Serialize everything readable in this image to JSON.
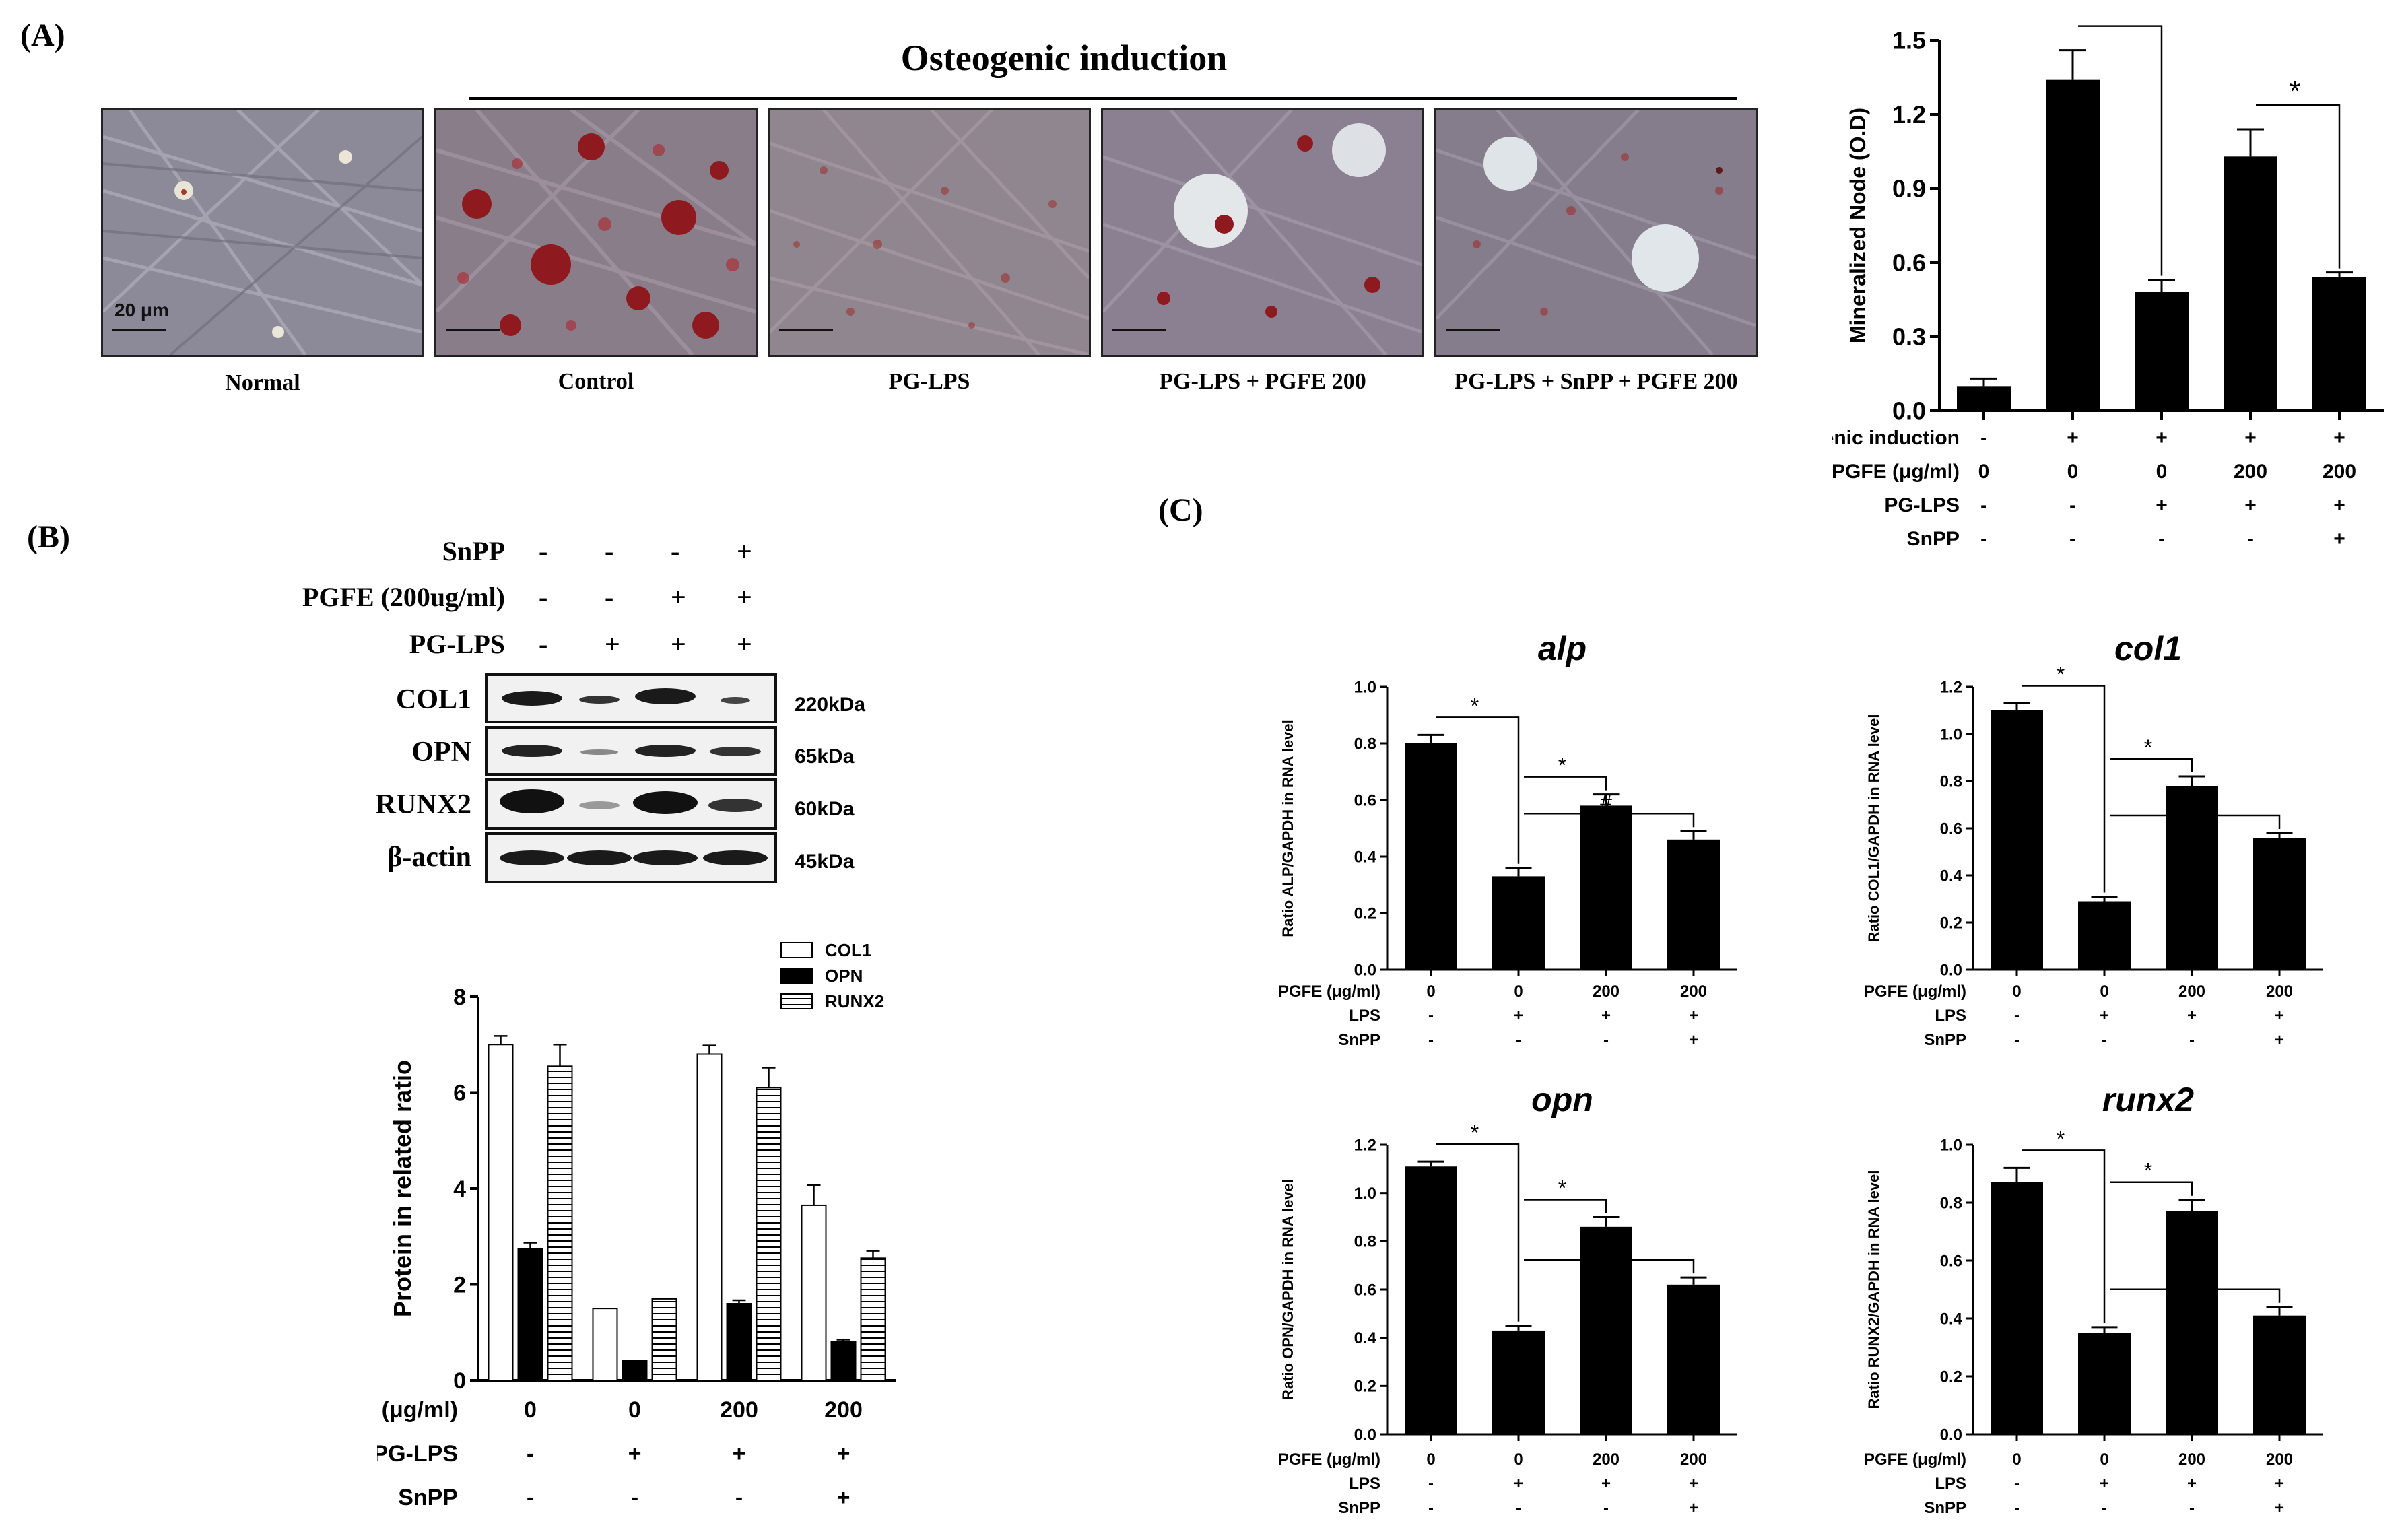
{
  "panelA": {
    "label": "(A)",
    "induction_label": "Osteogenic induction",
    "scale_bar_text": "20 μm",
    "images": [
      {
        "caption": "Normal"
      },
      {
        "caption": "Control"
      },
      {
        "caption": "PG-LPS"
      },
      {
        "caption": "PG-LPS + PGFE 200"
      },
      {
        "caption": "PG-LPS + SnPP + PGFE 200"
      }
    ]
  },
  "panelB": {
    "label": "(B)",
    "blot_conditions": [
      {
        "label": "SnPP",
        "values": [
          "-",
          "-",
          "-",
          "+"
        ]
      },
      {
        "label": "PGFE (200ug/ml)",
        "values": [
          "-",
          "-",
          "+",
          "+"
        ]
      },
      {
        "label": "PG-LPS",
        "values": [
          "-",
          "+",
          "+",
          "+"
        ]
      }
    ],
    "blots": [
      {
        "protein": "COL1",
        "kda": "220kDa"
      },
      {
        "protein": "OPN",
        "kda": "65kDa"
      },
      {
        "protein": "RUNX2",
        "kda": "60kDa"
      },
      {
        "protein": "β-actin",
        "kda": "45kDa"
      }
    ]
  },
  "panelC": {
    "label": "(C)"
  },
  "chart_data": [
    {
      "id": "mineralized",
      "type": "bar",
      "title": "",
      "ylabel": "Mineralized Node (O.D)",
      "ylim": [
        0,
        1.5
      ],
      "yticks": [
        "0.0",
        "0.3",
        "0.6",
        "0.9",
        "1.2",
        "1.5"
      ],
      "values": [
        0.1,
        1.34,
        0.48,
        1.03,
        0.54
      ],
      "errors": [
        0.03,
        0.12,
        0.05,
        0.11,
        0.02
      ],
      "significance": [
        {
          "from": 1,
          "to": 2,
          "label": "*"
        },
        {
          "from": 3,
          "to": 4,
          "label": "*"
        }
      ],
      "condition_rows": [
        {
          "label": "Osteogenic induction",
          "values": [
            "-",
            "+",
            "+",
            "+",
            "+"
          ]
        },
        {
          "label": "PGFE (μg/ml)",
          "values": [
            "0",
            "0",
            "0",
            "200",
            "200"
          ]
        },
        {
          "label": "PG-LPS",
          "values": [
            "-",
            "-",
            "+",
            "+",
            "+"
          ]
        },
        {
          "label": "SnPP",
          "values": [
            "-",
            "-",
            "-",
            "-",
            "+"
          ]
        }
      ]
    },
    {
      "id": "protein-ratio",
      "type": "bar",
      "title": "",
      "ylabel": "Protein in related ratio",
      "ylim": [
        0,
        8
      ],
      "yticks": [
        "0",
        "2",
        "4",
        "6",
        "8"
      ],
      "legend_position": "top-right",
      "series": [
        {
          "name": "COL1",
          "values": [
            7.0,
            1.5,
            6.8,
            3.65
          ],
          "errors": [
            0.18,
            0,
            0.18,
            0.42
          ],
          "pattern": "white"
        },
        {
          "name": "OPN",
          "values": [
            2.75,
            0.42,
            1.6,
            0.8
          ],
          "errors": [
            0.12,
            0,
            0.07,
            0.05
          ],
          "pattern": "black"
        },
        {
          "name": "RUNX2",
          "values": [
            6.55,
            1.7,
            6.1,
            2.55
          ],
          "errors": [
            0.45,
            0,
            0.42,
            0.15
          ],
          "pattern": "stripes"
        }
      ],
      "condition_rows": [
        {
          "label": "PGFE (μg/ml)",
          "values": [
            "0",
            "0",
            "200",
            "200"
          ]
        },
        {
          "label": "PG-LPS",
          "values": [
            "-",
            "+",
            "+",
            "+"
          ]
        },
        {
          "label": "SnPP",
          "values": [
            "-",
            "-",
            "-",
            "+"
          ]
        }
      ]
    },
    {
      "id": "alp",
      "type": "bar",
      "title": "alp",
      "ylabel": "Ratio ALP/GAPDH in RNA level",
      "ylim": [
        0,
        1.0
      ],
      "yticks": [
        "0.0",
        "0.2",
        "0.4",
        "0.6",
        "0.8",
        "1.0"
      ],
      "values": [
        0.8,
        0.33,
        0.58,
        0.46
      ],
      "errors": [
        0.03,
        0.03,
        0.04,
        0.03
      ],
      "significance": [
        {
          "from": 0,
          "to": 1,
          "label": "*"
        },
        {
          "from": 1,
          "to": 2,
          "label": "*"
        },
        {
          "from": 1,
          "to": 3,
          "label": "#"
        }
      ],
      "condition_rows": [
        {
          "label": "PGFE (μg/ml)",
          "values": [
            "0",
            "0",
            "200",
            "200"
          ]
        },
        {
          "label": "LPS",
          "values": [
            "-",
            "+",
            "+",
            "+"
          ]
        },
        {
          "label": "SnPP",
          "values": [
            "-",
            "-",
            "-",
            "+"
          ]
        }
      ]
    },
    {
      "id": "col1",
      "type": "bar",
      "title": "col1",
      "ylabel": "Ratio COL1/GAPDH in RNA level",
      "ylim": [
        0,
        1.2
      ],
      "yticks": [
        "0.0",
        "0.2",
        "0.4",
        "0.6",
        "0.8",
        "1.0",
        "1.2"
      ],
      "values": [
        1.1,
        0.29,
        0.78,
        0.56
      ],
      "errors": [
        0.03,
        0.02,
        0.04,
        0.02
      ],
      "significance": [
        {
          "from": 0,
          "to": 1,
          "label": "*"
        },
        {
          "from": 1,
          "to": 2,
          "label": "*"
        },
        {
          "from": 1,
          "to": 3,
          "label": "#"
        }
      ],
      "condition_rows": [
        {
          "label": "PGFE (μg/ml)",
          "values": [
            "0",
            "0",
            "200",
            "200"
          ]
        },
        {
          "label": "LPS",
          "values": [
            "-",
            "+",
            "+",
            "+"
          ]
        },
        {
          "label": "SnPP",
          "values": [
            "-",
            "-",
            "-",
            "+"
          ]
        }
      ]
    },
    {
      "id": "opn",
      "type": "bar",
      "title": "opn",
      "ylabel": "Ratio OPN/GAPDH in RNA level",
      "ylim": [
        0,
        1.2
      ],
      "yticks": [
        "0.0",
        "0.2",
        "0.4",
        "0.6",
        "0.8",
        "1.0",
        "1.2"
      ],
      "values": [
        1.11,
        0.43,
        0.86,
        0.62
      ],
      "errors": [
        0.02,
        0.02,
        0.04,
        0.03
      ],
      "significance": [
        {
          "from": 0,
          "to": 1,
          "label": "*"
        },
        {
          "from": 1,
          "to": 2,
          "label": "*"
        },
        {
          "from": 1,
          "to": 3,
          "label": "#"
        }
      ],
      "condition_rows": [
        {
          "label": "PGFE (μg/ml)",
          "values": [
            "0",
            "0",
            "200",
            "200"
          ]
        },
        {
          "label": "LPS",
          "values": [
            "-",
            "+",
            "+",
            "+"
          ]
        },
        {
          "label": "SnPP",
          "values": [
            "-",
            "-",
            "-",
            "+"
          ]
        }
      ]
    },
    {
      "id": "runx2",
      "type": "bar",
      "title": "runx2",
      "ylabel": "Ratio RUNX2/GAPDH in RNA level",
      "ylim": [
        0,
        1.0
      ],
      "yticks": [
        "0.0",
        "0.2",
        "0.4",
        "0.6",
        "0.8",
        "1.0"
      ],
      "values": [
        0.87,
        0.35,
        0.77,
        0.41
      ],
      "errors": [
        0.05,
        0.02,
        0.04,
        0.03
      ],
      "significance": [
        {
          "from": 0,
          "to": 1,
          "label": "*"
        },
        {
          "from": 1,
          "to": 2,
          "label": "*"
        },
        {
          "from": 1,
          "to": 3,
          "label": "#"
        }
      ],
      "condition_rows": [
        {
          "label": "PGFE (μg/ml)",
          "values": [
            "0",
            "0",
            "200",
            "200"
          ]
        },
        {
          "label": "LPS",
          "values": [
            "-",
            "+",
            "+",
            "+"
          ]
        },
        {
          "label": "SnPP",
          "values": [
            "-",
            "-",
            "-",
            "+"
          ]
        }
      ]
    }
  ]
}
